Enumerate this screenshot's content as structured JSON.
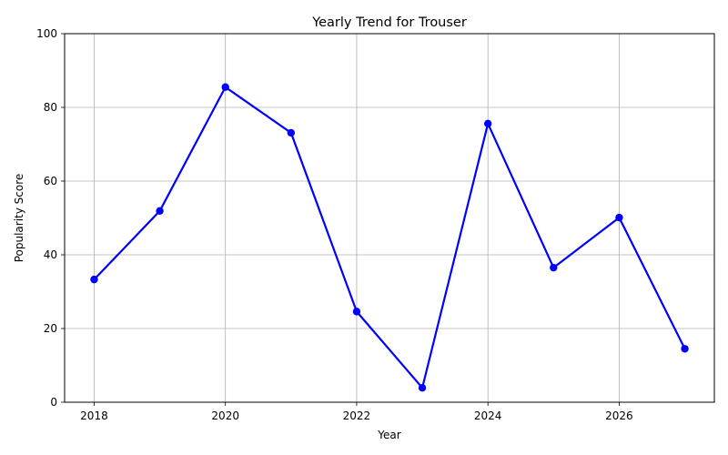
{
  "chart_data": {
    "type": "line",
    "title": "Yearly Trend for Trouser",
    "xlabel": "Year",
    "ylabel": "Popularity Score",
    "x": [
      2018,
      2019,
      2020,
      2021,
      2022,
      2023,
      2024,
      2025,
      2026,
      2027
    ],
    "series": [
      {
        "values": [
          33.3,
          51.9,
          85.5,
          73.1,
          24.6,
          3.9,
          75.6,
          36.5,
          50.1,
          14.5
        ],
        "color": "#0000ff"
      }
    ],
    "xlim": [
      2017.55,
      2027.45
    ],
    "ylim": [
      0,
      100
    ],
    "xticks": [
      2018,
      2020,
      2022,
      2024,
      2026
    ],
    "yticks": [
      0,
      20,
      40,
      60,
      80,
      100
    ],
    "grid": true,
    "legend": "none"
  }
}
